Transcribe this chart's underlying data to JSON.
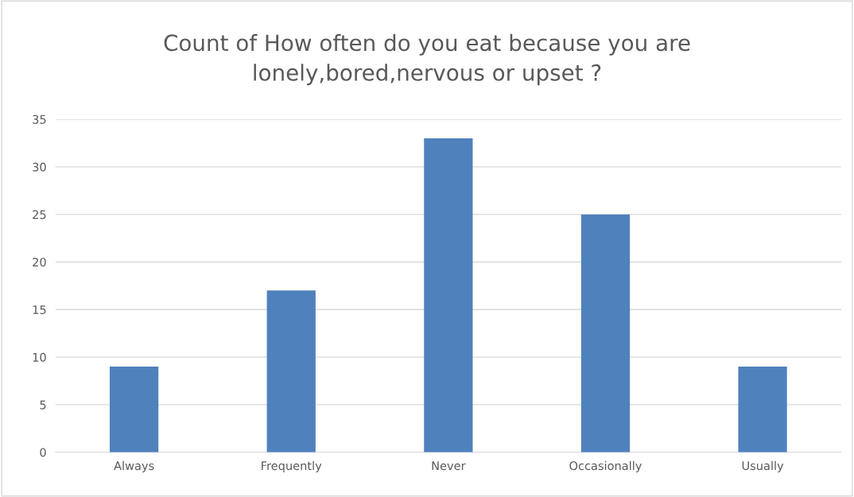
{
  "chart_data": {
    "type": "bar",
    "title": "Count of How often do you eat because you are\nlonely,bored,nervous or upset ?",
    "categories": [
      "Always",
      "Frequently",
      "Never",
      "Occasionally",
      "Usually"
    ],
    "values": [
      9,
      17,
      33,
      25,
      9
    ],
    "color": "#4f81bd",
    "ylim": [
      0,
      35
    ],
    "yticks": [
      0,
      5,
      10,
      15,
      20,
      25,
      30,
      35
    ],
    "grid": "y",
    "legend": false
  }
}
